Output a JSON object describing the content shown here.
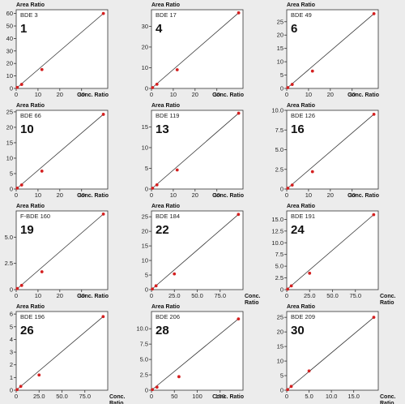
{
  "chart_data": [
    {
      "type": "scatter",
      "name": "BDE 3",
      "num": "1",
      "ylabel": "Area Ratio",
      "xlabel": "Conc. Ratio",
      "xticks": [
        0,
        10,
        20,
        30
      ],
      "xticklabels": [
        "0",
        "10",
        "20",
        "30"
      ],
      "xlim": [
        0,
        42
      ],
      "yticks": [
        0,
        10,
        20,
        30,
        40,
        50,
        60
      ],
      "yticklabels": [
        "0",
        "10",
        "20",
        "30",
        "40",
        "50",
        "60"
      ],
      "ylim": [
        0,
        63
      ],
      "points": [
        [
          0.5,
          0.8
        ],
        [
          2.5,
          3.2
        ],
        [
          11.8,
          15.1
        ],
        [
          40,
          60
        ]
      ],
      "line": [
        [
          0,
          0
        ],
        [
          40,
          60
        ]
      ]
    },
    {
      "type": "scatter",
      "name": "BDE 17",
      "num": "4",
      "ylabel": "Area Ratio",
      "xlabel": "Conc. Ratio",
      "xticks": [
        0,
        10,
        20,
        30
      ],
      "xticklabels": [
        "0",
        "10",
        "20",
        "30"
      ],
      "xlim": [
        0,
        42
      ],
      "yticks": [
        0,
        10,
        20,
        30
      ],
      "yticklabels": [
        "0",
        "10",
        "20",
        "30"
      ],
      "ylim": [
        0,
        38
      ],
      "points": [
        [
          0.5,
          0.4
        ],
        [
          2.5,
          2
        ],
        [
          11.8,
          9
        ],
        [
          40,
          36.5
        ]
      ],
      "line": [
        [
          0,
          0
        ],
        [
          40,
          36.5
        ]
      ]
    },
    {
      "type": "scatter",
      "name": "BDE 49",
      "num": "6",
      "ylabel": "Area Ratio",
      "xlabel": "Conc. Ratio",
      "xticks": [
        0,
        10,
        20,
        30
      ],
      "xticklabels": [
        "0",
        "10",
        "20",
        "30"
      ],
      "xlim": [
        0,
        42
      ],
      "yticks": [
        0,
        5,
        10,
        15,
        20,
        25
      ],
      "yticklabels": [
        "0",
        "5",
        "10",
        "15",
        "20",
        "25"
      ],
      "ylim": [
        0,
        29.5
      ],
      "points": [
        [
          0.5,
          0.3
        ],
        [
          2.5,
          1.5
        ],
        [
          11.8,
          6.5
        ],
        [
          40,
          28
        ]
      ],
      "line": [
        [
          0,
          0
        ],
        [
          40,
          28
        ]
      ]
    },
    {
      "type": "scatter",
      "name": "BDE 66",
      "num": "10",
      "ylabel": "Area Ratio",
      "xlabel": "Conc. Ratio",
      "xticks": [
        0,
        10,
        20,
        30
      ],
      "xticklabels": [
        "0",
        "10",
        "20",
        "30"
      ],
      "xlim": [
        0,
        42
      ],
      "yticks": [
        0,
        5,
        10,
        15,
        20,
        25
      ],
      "yticklabels": [
        "0",
        "5",
        "10",
        "15",
        "20",
        "25"
      ],
      "ylim": [
        0,
        25.5
      ],
      "points": [
        [
          0.5,
          0.3
        ],
        [
          2.5,
          1.3
        ],
        [
          11.8,
          5.8
        ],
        [
          40,
          24.2
        ]
      ],
      "line": [
        [
          0,
          0
        ],
        [
          40,
          24.2
        ]
      ]
    },
    {
      "type": "scatter",
      "name": "BDE 119",
      "num": "13",
      "ylabel": "Area Ratio",
      "xlabel": "Conc. Ratio",
      "xticks": [
        0,
        10,
        20,
        30
      ],
      "xticklabels": [
        "0",
        "10",
        "20",
        "30"
      ],
      "xlim": [
        0,
        42
      ],
      "yticks": [
        0,
        5,
        10,
        15
      ],
      "yticklabels": [
        "0",
        "5",
        "10",
        "15"
      ],
      "ylim": [
        0,
        19
      ],
      "points": [
        [
          0.5,
          0.2
        ],
        [
          2.5,
          1
        ],
        [
          11.8,
          4.6
        ],
        [
          40,
          18.3
        ]
      ],
      "line": [
        [
          0,
          0
        ],
        [
          40,
          18.3
        ]
      ]
    },
    {
      "type": "scatter",
      "name": "BDE 126",
      "num": "16",
      "ylabel": "Area Ratio",
      "xlabel": "Conc. Ratio",
      "xticks": [
        0,
        10,
        20,
        30
      ],
      "xticklabels": [
        "0",
        "10",
        "20",
        "30"
      ],
      "xlim": [
        0,
        42
      ],
      "yticks": [
        0,
        2.5,
        5,
        7.5,
        10
      ],
      "yticklabels": [
        "0",
        "2.5",
        "5.0",
        "7.5",
        "10.0"
      ],
      "ylim": [
        0,
        10
      ],
      "points": [
        [
          0.5,
          0.1
        ],
        [
          2.5,
          0.5
        ],
        [
          11.8,
          2.2
        ],
        [
          40,
          9.5
        ]
      ],
      "line": [
        [
          0,
          0
        ],
        [
          40,
          9.5
        ]
      ]
    },
    {
      "type": "scatter",
      "name": "F-BDE 160",
      "num": "19",
      "ylabel": "Area Ratio",
      "xlabel": "Conc. Ratio",
      "xticks": [
        0,
        10,
        20,
        30
      ],
      "xticklabels": [
        "0",
        "10",
        "20",
        "30"
      ],
      "xlim": [
        0,
        42
      ],
      "yticks": [
        0,
        2.5,
        5
      ],
      "yticklabels": [
        "0",
        "2.5",
        "5.0"
      ],
      "ylim": [
        0,
        7.5
      ],
      "points": [
        [
          0.5,
          0.1
        ],
        [
          2.5,
          0.4
        ],
        [
          11.8,
          1.7
        ],
        [
          40,
          7.2
        ]
      ],
      "line": [
        [
          0,
          0
        ],
        [
          40,
          7.2
        ]
      ]
    },
    {
      "type": "scatter",
      "name": "BDE 184",
      "num": "22",
      "ylabel": "Area Ratio",
      "xlabel": "Conc. Ratio",
      "xticks": [
        0,
        25,
        50,
        75
      ],
      "xticklabels": [
        "0",
        "25.0",
        "50.0",
        "75.0"
      ],
      "xlim": [
        0,
        100
      ],
      "yticks": [
        0,
        5,
        10,
        15,
        20,
        25
      ],
      "yticklabels": [
        "0",
        "5",
        "10",
        "15",
        "20",
        "25"
      ],
      "ylim": [
        0,
        27
      ],
      "points": [
        [
          1,
          0.2
        ],
        [
          5,
          1.3
        ],
        [
          25,
          5.4
        ],
        [
          95,
          25.8
        ]
      ],
      "line": [
        [
          0,
          0
        ],
        [
          95,
          25.8
        ]
      ]
    },
    {
      "type": "scatter",
      "name": "BDE 191",
      "num": "24",
      "ylabel": "Area Ratio",
      "xlabel": "Conc. Ratio",
      "xticks": [
        0,
        25,
        50,
        75
      ],
      "xticklabels": [
        "0",
        "25.0",
        "50.0",
        "75.0"
      ],
      "xlim": [
        0,
        100
      ],
      "yticks": [
        0,
        2.5,
        5,
        7.5,
        10,
        12.5,
        15
      ],
      "yticklabels": [
        "0",
        "2.5",
        "5.0",
        "7.5",
        "10.0",
        "12.5",
        "15.0"
      ],
      "ylim": [
        0,
        16.8
      ],
      "points": [
        [
          1,
          0.1
        ],
        [
          5,
          0.8
        ],
        [
          25,
          3.5
        ],
        [
          95,
          16
        ]
      ],
      "line": [
        [
          0,
          0
        ],
        [
          95,
          16
        ]
      ]
    },
    {
      "type": "scatter",
      "name": "BDE 196",
      "num": "26",
      "ylabel": "Area Ratio",
      "xlabel": "Conc. Ratio",
      "xticks": [
        0,
        25,
        50,
        75
      ],
      "xticklabels": [
        "0",
        "25.0",
        "50.0",
        "75.0"
      ],
      "xlim": [
        0,
        100
      ],
      "yticks": [
        0,
        1,
        2,
        3,
        4,
        5,
        6
      ],
      "yticklabels": [
        "0",
        "1",
        "2",
        "3",
        "4",
        "5",
        "6"
      ],
      "ylim": [
        0,
        6.2
      ],
      "points": [
        [
          1,
          0.05
        ],
        [
          5,
          0.3
        ],
        [
          25,
          1.2
        ],
        [
          95,
          5.8
        ]
      ],
      "line": [
        [
          0,
          0
        ],
        [
          95,
          5.8
        ]
      ]
    },
    {
      "type": "scatter",
      "name": "BDE 206",
      "num": "28",
      "ylabel": "Area Ratio",
      "xlabel": "Conc. Ratio",
      "xticks": [
        0,
        50,
        100,
        150
      ],
      "xticklabels": [
        "0",
        "50",
        "100",
        "150"
      ],
      "xlim": [
        0,
        200
      ],
      "yticks": [
        0,
        2.5,
        5,
        7.5,
        10
      ],
      "yticklabels": [
        "0",
        "2.5",
        "5.0",
        "7.5",
        "10.0"
      ],
      "ylim": [
        0,
        12.8
      ],
      "points": [
        [
          2,
          0.1
        ],
        [
          12,
          0.5
        ],
        [
          60,
          2.2
        ],
        [
          190,
          11.6
        ]
      ],
      "line": [
        [
          0,
          0
        ],
        [
          190,
          11.6
        ]
      ]
    },
    {
      "type": "scatter",
      "name": "BDE 209",
      "num": "30",
      "ylabel": "Area Ratio",
      "xlabel": "Conc. Ratio",
      "xticks": [
        0,
        5,
        10,
        15
      ],
      "xticklabels": [
        "0",
        "5.0",
        "10.0",
        "15.0"
      ],
      "xlim": [
        0,
        20.5
      ],
      "yticks": [
        0,
        5,
        10,
        15,
        20,
        25
      ],
      "yticklabels": [
        "0",
        "5",
        "10",
        "15",
        "20",
        "25"
      ],
      "ylim": [
        0,
        27
      ],
      "points": [
        [
          0.2,
          0.2
        ],
        [
          1,
          1.3
        ],
        [
          5,
          6.6
        ],
        [
          19.5,
          25
        ]
      ],
      "line": [
        [
          0,
          0
        ],
        [
          19.5,
          25
        ]
      ]
    }
  ],
  "colors": {
    "point": "#d42020",
    "line": "#333333",
    "axis": "#333333",
    "background": "#ececec"
  }
}
